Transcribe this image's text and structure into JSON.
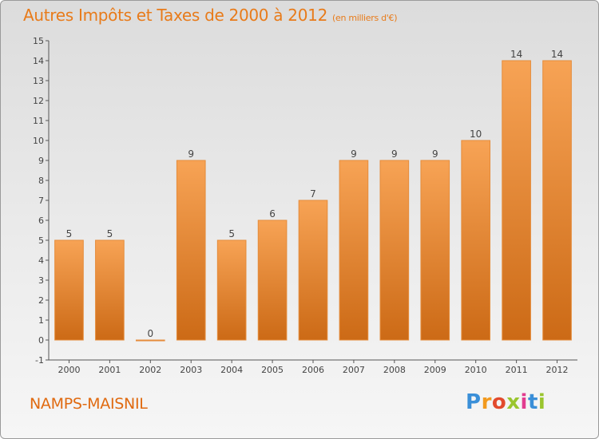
{
  "chart_data": {
    "type": "bar",
    "title": "Autres Impôts et Taxes de 2000 à 2012",
    "unit_label": "(en milliers d'€)",
    "categories": [
      "2000",
      "2001",
      "2002",
      "2003",
      "2004",
      "2005",
      "2006",
      "2007",
      "2008",
      "2009",
      "2010",
      "2011",
      "2012"
    ],
    "values": [
      5,
      5,
      0,
      9,
      5,
      6,
      7,
      9,
      9,
      9,
      10,
      14,
      14
    ],
    "data_labels": [
      "5",
      "5",
      "0",
      "9",
      "5",
      "6",
      "7",
      "9",
      "9",
      "9",
      "10",
      "14",
      "14"
    ],
    "ylim": [
      -1,
      15
    ],
    "yticks": [
      -1,
      0,
      1,
      2,
      3,
      4,
      5,
      6,
      7,
      8,
      9,
      10,
      11,
      12,
      13,
      14,
      15
    ],
    "grid": false,
    "legend": "none",
    "bar_color": "#f0923a",
    "xlabel": "",
    "ylabel": ""
  },
  "footer": {
    "commune": "NAMPS-MAISNIL",
    "brand_letters": [
      "P",
      "r",
      "o",
      "x",
      "i",
      "t",
      "i"
    ],
    "brand_colors": [
      "#3a8fd8",
      "#f29a1e",
      "#e24a2d",
      "#9ac52e",
      "#e23c8f",
      "#3a8fd8",
      "#9ac52e"
    ]
  },
  "colors": {
    "title": "#e87b1a",
    "axis": "#555555",
    "bar_top": "#f7a355",
    "bar_bottom": "#cc6a16"
  }
}
